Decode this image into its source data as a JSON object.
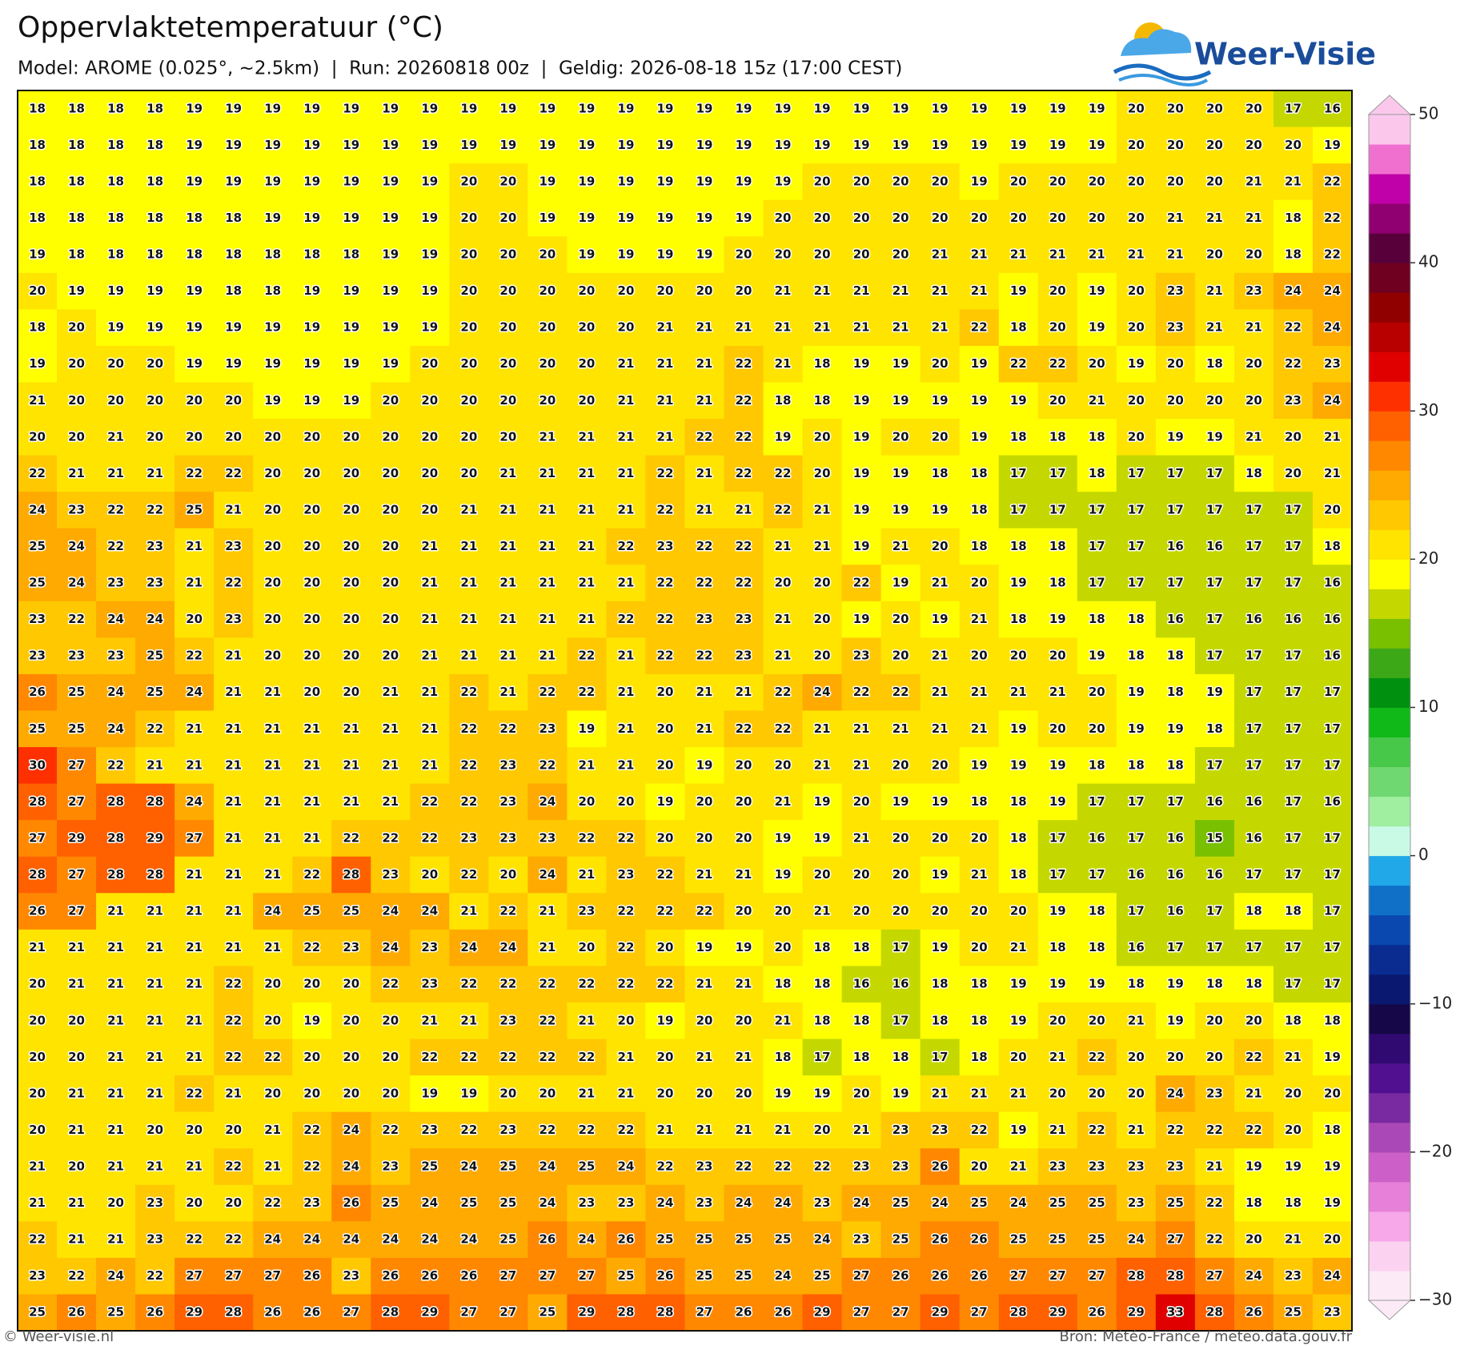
{
  "chart_data": {
    "type": "heatmap",
    "title": "Oppervlaktetemperatuur (°C)",
    "subtitle": "Model: AROME (0.025°, ~2.5km)  |  Run: 20260818 00z  |  Geldig: 2026-08-18 15z (17:00 CEST)",
    "brand": "Weer-Visie",
    "footer_left": "© Weer-visie.nl",
    "footer_right": "Bron: Météo-France / meteo.data.gouv.fr",
    "clim": [
      -30,
      50
    ],
    "cticks": [
      50,
      40,
      30,
      20,
      10,
      0,
      {
        "value": -10,
        "label": "−10"
      },
      {
        "value": -20,
        "label": "−20"
      },
      {
        "value": -30,
        "label": "−30"
      }
    ],
    "colormap": [
      "#fdeaf7",
      "#fcd2f1",
      "#f6a8e8",
      "#e680d8",
      "#cc60c8",
      "#aa48b8",
      "#7a2aa0",
      "#501090",
      "#300a70",
      "#160848",
      "#0a1870",
      "#0a2c90",
      "#0a48b0",
      "#1070c8",
      "#20a8e8",
      "#c8fae6",
      "#a0eea0",
      "#70d870",
      "#48c848",
      "#10b818",
      "#009010",
      "#3ca818",
      "#78c000",
      "#c4d800",
      "#ffff00",
      "#ffe400",
      "#ffc800",
      "#ffaa00",
      "#ff8800",
      "#ff6000",
      "#ff3000",
      "#e00000",
      "#b80000",
      "#900000",
      "#700020",
      "#58003a",
      "#900070",
      "#c000a8",
      "#f070d0",
      "#fbc8ec"
    ],
    "values": [
      [
        18,
        18,
        18,
        18,
        19,
        19,
        19,
        19,
        19,
        19,
        19,
        19,
        19,
        19,
        19,
        19,
        19,
        19,
        19,
        19,
        19,
        19,
        19,
        19,
        19,
        19,
        19,
        19,
        20,
        20,
        20,
        20,
        17,
        16
      ],
      [
        18,
        18,
        18,
        18,
        19,
        19,
        19,
        19,
        19,
        19,
        19,
        19,
        19,
        19,
        19,
        19,
        19,
        19,
        19,
        19,
        19,
        19,
        19,
        19,
        19,
        19,
        19,
        19,
        20,
        20,
        20,
        20,
        20,
        19
      ],
      [
        18,
        18,
        18,
        18,
        19,
        19,
        19,
        19,
        19,
        19,
        19,
        20,
        20,
        19,
        19,
        19,
        19,
        19,
        19,
        19,
        20,
        20,
        20,
        20,
        19,
        20,
        20,
        20,
        20,
        20,
        20,
        21,
        21,
        22
      ],
      [
        18,
        18,
        18,
        18,
        18,
        18,
        19,
        19,
        19,
        19,
        19,
        20,
        20,
        19,
        19,
        19,
        19,
        19,
        19,
        20,
        20,
        20,
        20,
        20,
        20,
        20,
        20,
        20,
        20,
        21,
        21,
        21,
        18,
        22
      ],
      [
        19,
        18,
        18,
        18,
        18,
        18,
        18,
        18,
        18,
        19,
        19,
        20,
        20,
        20,
        19,
        19,
        19,
        19,
        20,
        20,
        20,
        20,
        20,
        21,
        21,
        21,
        21,
        21,
        21,
        21,
        20,
        20,
        18,
        22
      ],
      [
        20,
        19,
        19,
        19,
        19,
        18,
        18,
        19,
        19,
        19,
        19,
        20,
        20,
        20,
        20,
        20,
        20,
        20,
        20,
        21,
        21,
        21,
        21,
        21,
        21,
        19,
        20,
        19,
        20,
        23,
        21,
        23,
        24,
        24
      ],
      [
        18,
        20,
        19,
        19,
        19,
        19,
        19,
        19,
        19,
        19,
        19,
        20,
        20,
        20,
        20,
        20,
        21,
        21,
        21,
        21,
        21,
        21,
        21,
        21,
        22,
        18,
        20,
        19,
        20,
        23,
        21,
        21,
        22,
        24
      ],
      [
        19,
        20,
        20,
        20,
        19,
        19,
        19,
        19,
        19,
        19,
        20,
        20,
        20,
        20,
        20,
        21,
        21,
        21,
        22,
        21,
        18,
        19,
        19,
        20,
        19,
        22,
        22,
        20,
        19,
        20,
        18,
        20,
        22,
        23
      ],
      [
        21,
        20,
        20,
        20,
        20,
        20,
        19,
        19,
        19,
        20,
        20,
        20,
        20,
        20,
        20,
        21,
        21,
        21,
        22,
        18,
        18,
        19,
        19,
        19,
        19,
        19,
        20,
        21,
        20,
        20,
        20,
        20,
        23,
        24
      ],
      [
        20,
        20,
        21,
        20,
        20,
        20,
        20,
        20,
        20,
        20,
        20,
        20,
        20,
        21,
        21,
        21,
        21,
        22,
        22,
        19,
        20,
        19,
        20,
        20,
        19,
        18,
        18,
        18,
        20,
        19,
        19,
        21,
        20,
        21
      ],
      [
        22,
        21,
        21,
        21,
        22,
        22,
        20,
        20,
        20,
        20,
        20,
        20,
        21,
        21,
        21,
        21,
        22,
        21,
        22,
        22,
        20,
        19,
        19,
        18,
        18,
        17,
        17,
        18,
        17,
        17,
        17,
        18,
        20,
        21
      ],
      [
        24,
        23,
        22,
        22,
        25,
        21,
        20,
        20,
        20,
        20,
        20,
        21,
        21,
        21,
        21,
        21,
        22,
        21,
        21,
        22,
        21,
        19,
        19,
        19,
        18,
        17,
        17,
        17,
        17,
        17,
        17,
        17,
        17,
        20
      ],
      [
        25,
        24,
        22,
        23,
        21,
        23,
        20,
        20,
        20,
        20,
        21,
        21,
        21,
        21,
        21,
        22,
        23,
        22,
        22,
        21,
        21,
        19,
        21,
        20,
        18,
        18,
        18,
        17,
        17,
        16,
        16,
        17,
        17,
        18
      ],
      [
        25,
        24,
        23,
        23,
        21,
        22,
        20,
        20,
        20,
        20,
        21,
        21,
        21,
        21,
        21,
        21,
        22,
        22,
        22,
        20,
        20,
        22,
        19,
        21,
        20,
        19,
        18,
        17,
        17,
        17,
        17,
        17,
        17,
        16
      ],
      [
        23,
        22,
        24,
        24,
        20,
        23,
        20,
        20,
        20,
        20,
        21,
        21,
        21,
        21,
        21,
        22,
        22,
        23,
        23,
        21,
        20,
        19,
        20,
        19,
        21,
        18,
        19,
        18,
        18,
        16,
        17,
        16,
        16,
        16
      ],
      [
        23,
        23,
        23,
        25,
        22,
        21,
        20,
        20,
        20,
        20,
        21,
        21,
        21,
        21,
        22,
        21,
        22,
        22,
        23,
        21,
        20,
        23,
        20,
        21,
        20,
        20,
        20,
        19,
        18,
        18,
        17,
        17,
        17,
        16
      ],
      [
        26,
        25,
        24,
        25,
        24,
        21,
        21,
        20,
        20,
        21,
        21,
        22,
        21,
        22,
        22,
        21,
        20,
        21,
        21,
        22,
        24,
        22,
        22,
        21,
        21,
        21,
        21,
        20,
        19,
        18,
        19,
        17,
        17,
        17
      ],
      [
        25,
        25,
        24,
        22,
        21,
        21,
        21,
        21,
        21,
        21,
        21,
        22,
        22,
        23,
        19,
        21,
        20,
        21,
        22,
        22,
        21,
        21,
        21,
        21,
        21,
        19,
        20,
        20,
        19,
        19,
        18,
        17,
        17,
        17
      ],
      [
        30,
        27,
        22,
        21,
        21,
        21,
        21,
        21,
        21,
        21,
        21,
        22,
        23,
        22,
        21,
        21,
        20,
        19,
        20,
        20,
        21,
        21,
        20,
        20,
        19,
        19,
        19,
        18,
        18,
        18,
        17,
        17,
        17,
        17
      ],
      [
        28,
        27,
        28,
        28,
        24,
        21,
        21,
        21,
        21,
        21,
        22,
        22,
        23,
        24,
        20,
        20,
        19,
        20,
        20,
        21,
        19,
        20,
        19,
        19,
        18,
        18,
        19,
        17,
        17,
        17,
        16,
        16,
        17,
        16
      ],
      [
        27,
        29,
        28,
        29,
        27,
        21,
        21,
        21,
        22,
        22,
        22,
        23,
        23,
        23,
        22,
        22,
        20,
        20,
        20,
        19,
        19,
        21,
        20,
        20,
        20,
        18,
        17,
        16,
        17,
        16,
        15,
        16,
        17,
        17
      ],
      [
        28,
        27,
        28,
        28,
        21,
        21,
        21,
        22,
        28,
        23,
        20,
        22,
        20,
        24,
        21,
        23,
        22,
        21,
        21,
        19,
        20,
        20,
        20,
        19,
        21,
        18,
        17,
        17,
        16,
        16,
        16,
        17,
        17,
        17
      ],
      [
        26,
        27,
        21,
        21,
        21,
        21,
        24,
        25,
        25,
        24,
        24,
        21,
        22,
        21,
        23,
        22,
        22,
        22,
        20,
        20,
        21,
        20,
        20,
        20,
        20,
        20,
        19,
        18,
        17,
        16,
        17,
        18,
        18,
        17
      ],
      [
        21,
        21,
        21,
        21,
        21,
        21,
        21,
        22,
        23,
        24,
        23,
        24,
        24,
        21,
        20,
        22,
        20,
        19,
        19,
        20,
        18,
        18,
        17,
        19,
        20,
        21,
        18,
        18,
        16,
        17,
        17,
        17,
        17,
        17
      ],
      [
        20,
        21,
        21,
        21,
        21,
        22,
        20,
        20,
        20,
        22,
        23,
        22,
        22,
        22,
        22,
        22,
        22,
        21,
        21,
        18,
        18,
        16,
        16,
        18,
        18,
        19,
        19,
        19,
        18,
        19,
        18,
        18,
        17,
        17
      ],
      [
        20,
        20,
        21,
        21,
        21,
        22,
        20,
        19,
        20,
        20,
        21,
        21,
        23,
        22,
        21,
        20,
        19,
        20,
        20,
        21,
        18,
        18,
        17,
        18,
        18,
        19,
        20,
        20,
        21,
        19,
        20,
        20,
        18,
        18
      ],
      [
        20,
        20,
        21,
        21,
        21,
        22,
        22,
        20,
        20,
        20,
        22,
        22,
        22,
        22,
        22,
        21,
        20,
        21,
        21,
        18,
        17,
        18,
        18,
        17,
        18,
        20,
        21,
        22,
        20,
        20,
        20,
        22,
        21,
        19
      ],
      [
        20,
        21,
        21,
        21,
        22,
        21,
        20,
        20,
        20,
        20,
        19,
        19,
        20,
        20,
        21,
        21,
        20,
        20,
        20,
        19,
        19,
        20,
        19,
        21,
        21,
        21,
        20,
        20,
        20,
        24,
        23,
        21,
        20,
        20
      ],
      [
        20,
        21,
        21,
        20,
        20,
        20,
        21,
        22,
        24,
        22,
        23,
        22,
        23,
        22,
        22,
        22,
        21,
        21,
        21,
        21,
        20,
        21,
        23,
        23,
        22,
        19,
        21,
        22,
        21,
        22,
        22,
        22,
        20,
        18
      ],
      [
        21,
        20,
        21,
        21,
        21,
        22,
        21,
        22,
        24,
        23,
        25,
        24,
        25,
        24,
        25,
        24,
        22,
        23,
        22,
        22,
        22,
        23,
        23,
        26,
        20,
        21,
        23,
        23,
        23,
        23,
        21,
        19,
        19,
        19
      ],
      [
        21,
        21,
        20,
        23,
        20,
        20,
        22,
        23,
        26,
        25,
        24,
        25,
        25,
        24,
        23,
        23,
        24,
        23,
        24,
        24,
        23,
        24,
        25,
        24,
        25,
        24,
        25,
        25,
        23,
        25,
        22,
        18,
        18,
        19
      ],
      [
        22,
        21,
        21,
        23,
        22,
        22,
        24,
        24,
        24,
        24,
        24,
        24,
        25,
        26,
        24,
        26,
        25,
        25,
        25,
        25,
        24,
        23,
        25,
        26,
        26,
        25,
        25,
        25,
        24,
        27,
        22,
        20,
        21,
        20
      ],
      [
        23,
        22,
        24,
        22,
        27,
        27,
        27,
        26,
        23,
        26,
        26,
        26,
        27,
        27,
        27,
        25,
        26,
        25,
        25,
        24,
        25,
        27,
        26,
        26,
        26,
        27,
        27,
        27,
        28,
        28,
        27,
        24,
        23,
        24
      ],
      [
        25,
        26,
        25,
        26,
        29,
        28,
        26,
        26,
        27,
        28,
        29,
        27,
        27,
        25,
        29,
        28,
        28,
        27,
        26,
        26,
        29,
        27,
        27,
        29,
        27,
        28,
        29,
        26,
        29,
        33,
        28,
        26,
        25,
        23
      ]
    ]
  }
}
